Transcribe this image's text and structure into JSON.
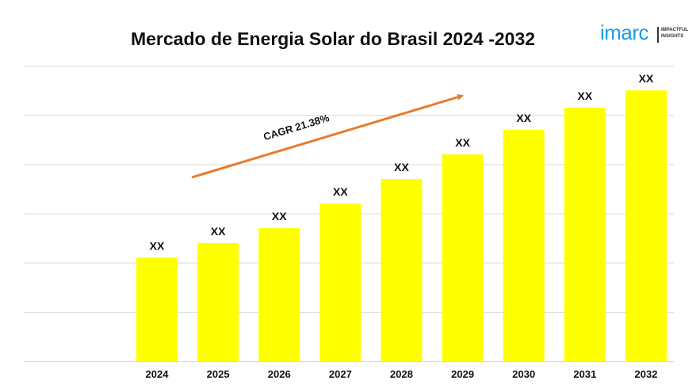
{
  "title": "Mercado de Energia Solar do Brasil 2024 -2032",
  "logo": {
    "brand": "imarc",
    "tagline_1": "IMPACTFUL",
    "tagline_2": "INSIGHTS"
  },
  "chart_data": {
    "type": "bar",
    "title": "Mercado de Energia Solar do Brasil 2024 -2032",
    "categories": [
      "2024",
      "2025",
      "2026",
      "2027",
      "2028",
      "2029",
      "2030",
      "2031",
      "2032"
    ],
    "values": [
      21,
      24,
      27,
      32,
      37,
      42,
      47,
      51.5,
      55
    ],
    "data_labels": [
      "XX",
      "XX",
      "XX",
      "XX",
      "XX",
      "XX",
      "XX",
      "XX",
      "XX"
    ],
    "ylim": [
      0,
      60
    ],
    "grid": true,
    "y_ticks_visible": false,
    "bar_color": "#ffff00",
    "arrow_color": "#e87b2c",
    "annotation": "CAGR 21.38%"
  }
}
